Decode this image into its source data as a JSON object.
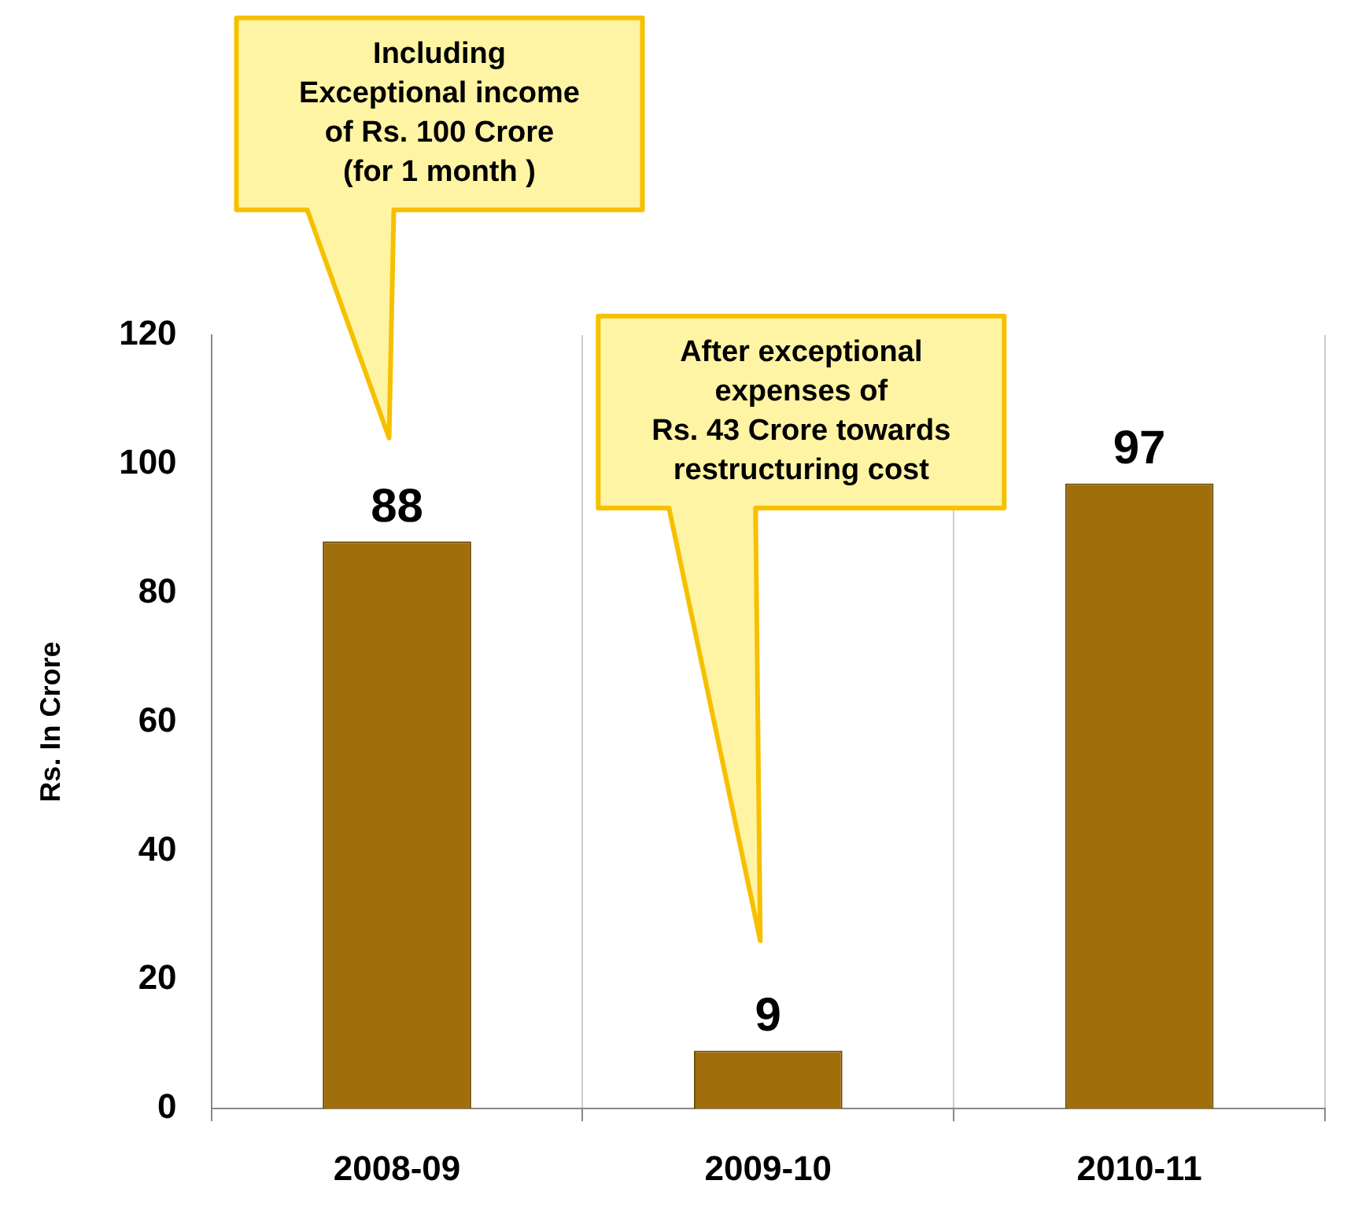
{
  "chart_data": {
    "type": "bar",
    "ylabel": "Rs. In Crore",
    "categories": [
      "2008-09",
      "2009-10",
      "2010-11"
    ],
    "values": [
      88,
      9,
      97
    ],
    "color": "#a06e0a",
    "ylim": [
      0,
      120
    ],
    "yticks": [
      0,
      20,
      40,
      60,
      80,
      100,
      120
    ],
    "grid": "x",
    "data_labels": true,
    "annotations": [
      "Including Exceptional income of Rs. 100 Crore (for 1 month )",
      "After exceptional expenses of Rs. 43 Crore towards restructuring cost"
    ]
  }
}
